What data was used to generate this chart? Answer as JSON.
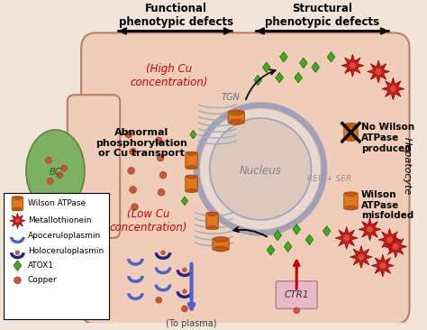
{
  "title_left": "Functional\nphenotypic defects",
  "title_right": "Structural\nphenotypic defects",
  "side_label": "Hepatocyte",
  "bg_color": "#f2e4d8",
  "cell_color": "#f0cdb8",
  "bc_color": "#8db87a",
  "legend_items": [
    {
      "label": "Wilson ATPase"
    },
    {
      "label": "Metallothionein"
    },
    {
      "label": "Apoceruloplasmin"
    },
    {
      "label": "Holoceruloplasmin"
    },
    {
      "label": "ATOX1"
    },
    {
      "label": "Copper"
    }
  ],
  "labels": {
    "high_cu": "(High Cu\nconcentration)",
    "low_cu": "(Low Cu\nconcentration)",
    "abnormal": "Abnormal\nphosphorylation\nor Cu transport",
    "tgn": "TGN",
    "rer_ser": "RER + SER",
    "nucleus": "Nucleus",
    "bc": "BC",
    "no_wilson": "No Wilson\nATPase\nproduced",
    "wilson_misfolded": "Wilson\nATPase\nmisfolded",
    "to_plasma": "(To plasma)",
    "ctr1": "CTR1"
  }
}
